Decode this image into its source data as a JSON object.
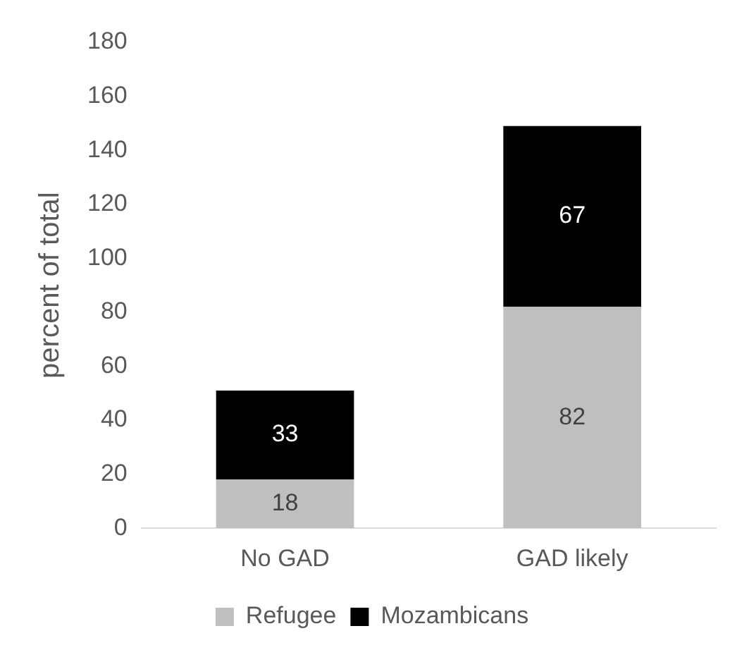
{
  "chart_data": {
    "type": "bar",
    "stacked": true,
    "categories": [
      "No GAD",
      "GAD likely"
    ],
    "series": [
      {
        "name": "Refugee",
        "color": "#bfbfbf",
        "values": [
          18,
          82
        ]
      },
      {
        "name": "Mozambicans",
        "color": "#000000",
        "values": [
          33,
          67
        ]
      }
    ],
    "ylabel": "percent of total",
    "ylim": [
      0,
      180
    ],
    "yticks": [
      0,
      20,
      40,
      60,
      80,
      100,
      120,
      140,
      160,
      180
    ],
    "grid": false,
    "legend": "bottom",
    "data_labels": true
  }
}
